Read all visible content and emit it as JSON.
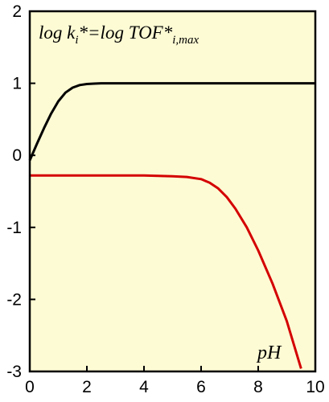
{
  "chart_data": {
    "type": "line",
    "title": "",
    "xlabel": "",
    "ylabel": "",
    "xlim": [
      0,
      10
    ],
    "ylim": [
      -3,
      2
    ],
    "x_ticks": [
      0,
      2,
      4,
      6,
      8,
      10
    ],
    "y_ticks": [
      2,
      1,
      0,
      -1,
      -2,
      -3
    ],
    "x_tick_labels": [
      "0",
      "2",
      "4",
      "6",
      "8",
      "10"
    ],
    "y_tick_labels": [
      "2",
      "1",
      "0",
      "-1",
      "-2",
      "-3"
    ],
    "grid": false,
    "background": "#fdfbd4",
    "annotations": {
      "label_main": "log k",
      "label_sub1": "i",
      "label_mid": "*=log TOF*",
      "label_sub2": "i,max",
      "pH": "pH"
    },
    "series": [
      {
        "color": "#000000",
        "x": [
          0,
          0.25,
          0.5,
          0.75,
          1.0,
          1.25,
          1.5,
          1.75,
          2.0,
          2.25,
          2.5,
          3.0,
          4.0,
          5.0,
          6.0,
          7.0,
          8.0,
          9.0,
          10.0
        ],
        "y": [
          -0.07,
          0.16,
          0.38,
          0.58,
          0.75,
          0.87,
          0.94,
          0.975,
          0.99,
          0.996,
          1.0,
          1.0,
          1.0,
          1.0,
          1.0,
          1.0,
          1.0,
          1.0,
          1.0
        ]
      },
      {
        "color": "#d40000",
        "x": [
          0,
          1,
          2,
          3,
          4,
          5,
          5.5,
          6.0,
          6.3,
          6.6,
          6.9,
          7.2,
          7.6,
          8.0,
          8.5,
          9.0,
          9.5
        ],
        "y": [
          -0.28,
          -0.28,
          -0.28,
          -0.28,
          -0.28,
          -0.29,
          -0.3,
          -0.33,
          -0.38,
          -0.46,
          -0.58,
          -0.74,
          -1.0,
          -1.32,
          -1.78,
          -2.3,
          -2.96
        ]
      }
    ]
  }
}
